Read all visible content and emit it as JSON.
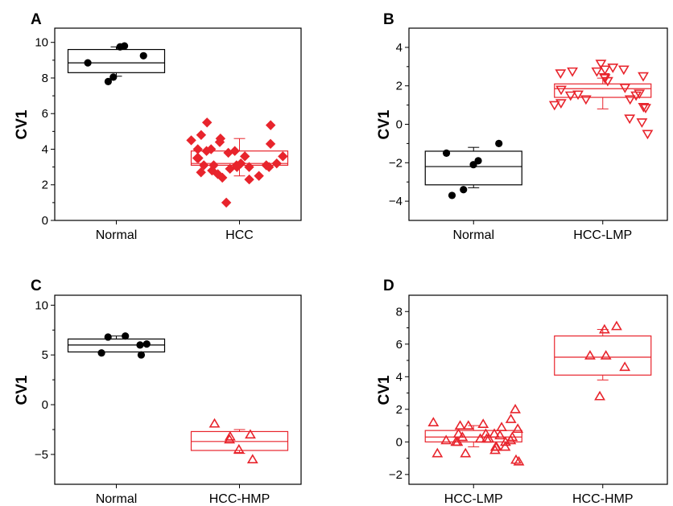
{
  "chart_data": [
    {
      "type": "box",
      "panel_label": "A",
      "ylabel": "CV1",
      "ylim": [
        0,
        10.8
      ],
      "yticks": [
        0,
        2,
        4,
        6,
        8,
        10
      ],
      "categories": [
        "Normal",
        "HCC"
      ],
      "groups": [
        {
          "category": "Normal",
          "color": "#000000",
          "marker": "circle",
          "box": {
            "q1": 8.3,
            "median": 8.85,
            "q3": 9.6,
            "whisker_low": 8.1,
            "whisker_high": 9.75
          },
          "points": [
            9.25,
            8.85,
            9.75,
            7.8,
            8.05,
            9.8
          ]
        },
        {
          "category": "HCC",
          "color": "#e8242c",
          "marker": "diamond",
          "box": {
            "q1": 3.1,
            "median": 3.2,
            "q3": 3.9,
            "whisker_low": 2.5,
            "whisker_high": 4.6
          },
          "points": [
            3.1,
            3.1,
            3.0,
            3.6,
            3.9,
            4.0,
            2.5,
            3.0,
            2.6,
            3.2,
            3.1,
            2.7,
            4.4,
            4.8,
            5.35,
            3.6,
            2.9,
            3.2,
            3.0,
            2.8,
            4.6,
            5.5,
            3.9,
            4.0,
            4.3,
            4.5,
            3.5,
            3.5,
            2.3,
            3.1,
            3.8,
            2.4,
            1.0
          ]
        }
      ]
    },
    {
      "type": "box",
      "panel_label": "B",
      "ylabel": "CV1",
      "ylim": [
        -5,
        5
      ],
      "yticks": [
        -4,
        -2,
        0,
        2,
        4
      ],
      "tick_labels": [
        "−4",
        "−2",
        "0",
        "2",
        "4"
      ],
      "categories": [
        "Normal",
        "HCC-LMP"
      ],
      "groups": [
        {
          "category": "Normal",
          "color": "#000000",
          "marker": "circle",
          "box": {
            "q1": -3.15,
            "median": -2.2,
            "q3": -1.4,
            "whisker_low": -3.3,
            "whisker_high": -1.2
          },
          "points": [
            -1.5,
            -3.7,
            -2.1,
            -1.0,
            -3.4,
            -1.9
          ]
        },
        {
          "category": "HCC-LMP",
          "color": "#e8242c",
          "marker": "triangle-down",
          "box": {
            "q1": 1.4,
            "median": 1.85,
            "q3": 2.1,
            "whisker_low": 0.8,
            "whisker_high": 2.4
          },
          "points": [
            2.75,
            2.75,
            1.3,
            0.3,
            1.6,
            1.8,
            1.9,
            1.5,
            0.85,
            2.95,
            3.15,
            2.5,
            1.0,
            1.1,
            2.85,
            2.85,
            0.1,
            -0.5,
            2.4,
            1.55,
            1.3,
            0.9,
            2.25,
            2.65,
            2.45,
            1.5
          ]
        }
      ]
    },
    {
      "type": "box",
      "panel_label": "C",
      "ylabel": "CV1",
      "ylim": [
        -8,
        11
      ],
      "yticks": [
        -5,
        0,
        5,
        10
      ],
      "tick_labels": [
        "−5",
        "0",
        "5",
        "10"
      ],
      "categories": [
        "Normal",
        "HCC-HMP"
      ],
      "groups": [
        {
          "category": "Normal",
          "color": "#000000",
          "marker": "circle",
          "box": {
            "q1": 5.3,
            "median": 6.0,
            "q3": 6.6,
            "whisker_low": 5.3,
            "whisker_high": 6.9
          },
          "points": [
            6.8,
            6.0,
            6.9,
            5.2,
            5.0,
            6.1
          ]
        },
        {
          "category": "HCC-HMP",
          "color": "#e8242c",
          "marker": "triangle-up",
          "box": {
            "q1": -4.6,
            "median": -3.7,
            "q3": -2.7,
            "whisker_low": -4.9,
            "whisker_high": -2.5
          },
          "points": [
            -3.0,
            -5.5,
            -4.5,
            -1.9,
            -3.2,
            -3.5
          ]
        }
      ]
    },
    {
      "type": "box",
      "panel_label": "D",
      "ylabel": "CV1",
      "ylim": [
        -2.6,
        9
      ],
      "yticks": [
        -2,
        0,
        2,
        4,
        6,
        8
      ],
      "tick_labels": [
        "−2",
        "0",
        "2",
        "4",
        "6",
        "8"
      ],
      "categories": [
        "HCC-LMP",
        "HCC-HMP"
      ],
      "groups": [
        {
          "category": "HCC-LMP",
          "color": "#e8242c",
          "marker": "triangle-up",
          "box": {
            "q1": 0.0,
            "median": 0.3,
            "q3": 0.7,
            "whisker_low": -0.3,
            "whisker_high": 1.0
          },
          "points": [
            0.2,
            0.5,
            0.1,
            0.0,
            -0.3,
            0.8,
            1.0,
            0.5,
            -0.7,
            1.0,
            0.2,
            -1.2,
            1.2,
            -0.7,
            1.4,
            2.0,
            -0.3,
            -1.1,
            0.9,
            0.5,
            1.1,
            0.0,
            -0.5,
            -0.3,
            0.2,
            0.0,
            0.3,
            0.3,
            0.4,
            0.1
          ]
        },
        {
          "category": "HCC-HMP",
          "color": "#e8242c",
          "marker": "triangle-up",
          "box": {
            "q1": 4.1,
            "median": 5.2,
            "q3": 6.5,
            "whisker_low": 3.8,
            "whisker_high": 6.9
          },
          "points": [
            7.1,
            5.3,
            4.6,
            2.8,
            6.9,
            5.3
          ]
        }
      ]
    }
  ]
}
